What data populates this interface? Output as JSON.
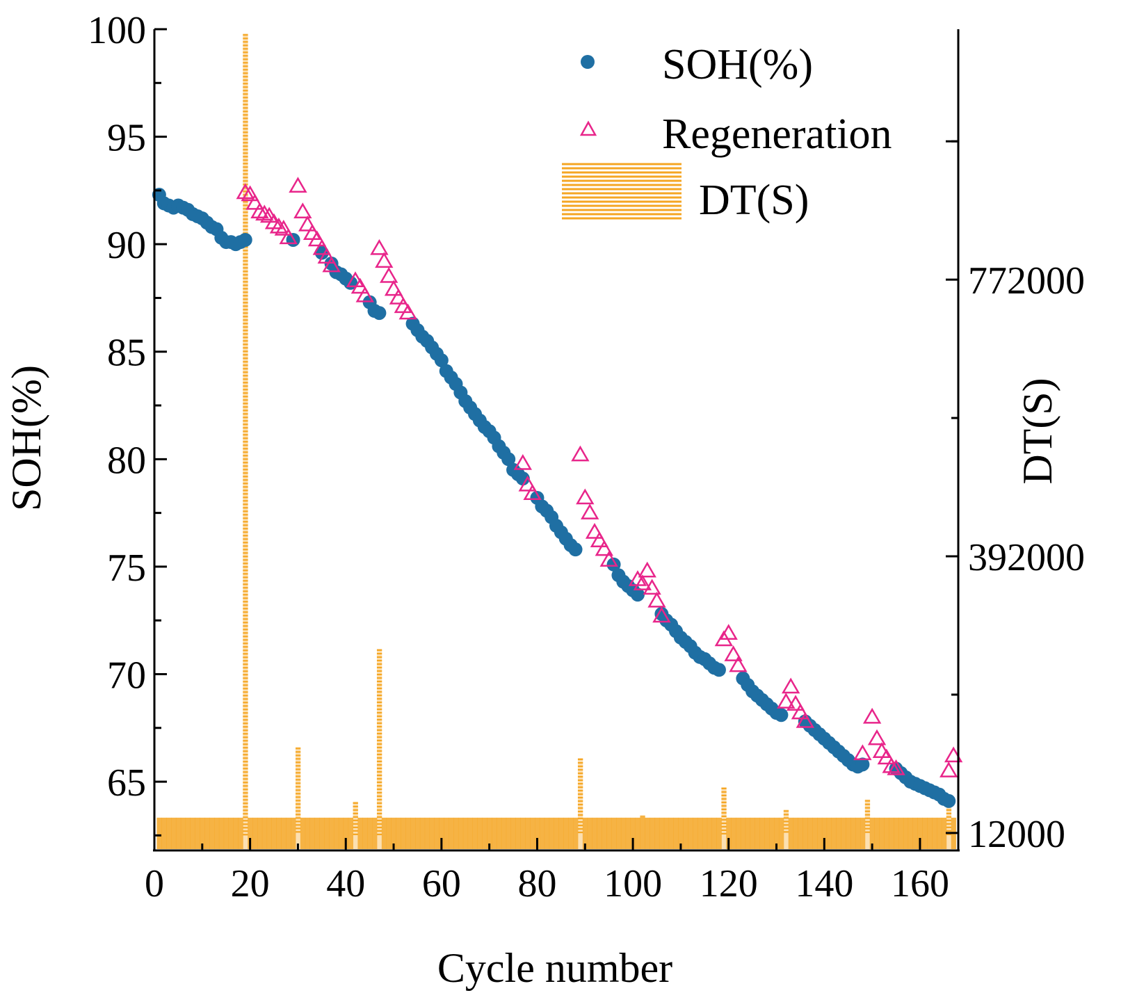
{
  "chart_data": {
    "type": "scatter",
    "title": "",
    "xlabel": "Cycle number",
    "ylabel": "SOH(%)",
    "y2label": "DT(S)",
    "xlim": [
      0,
      168
    ],
    "ylim": [
      61.8,
      100
    ],
    "y2lim": [
      -12000,
      1116000
    ],
    "x_ticks": [
      0,
      20,
      40,
      60,
      80,
      100,
      120,
      140,
      160
    ],
    "y_ticks": [
      65,
      70,
      75,
      80,
      85,
      90,
      95,
      100
    ],
    "y2_ticks": [
      12000,
      392000,
      772000
    ],
    "grid": false,
    "legend_position": "top-right",
    "legend": {
      "soh": "SOH(%)",
      "regeneration": "Regeneration",
      "dt": "DT(S)"
    },
    "colors": {
      "soh": "#1f6fa3",
      "regeneration": "#e8258a",
      "dt": "#f5a623"
    },
    "series": [
      {
        "name": "SOH(%)",
        "marker": "circle",
        "points": [
          [
            1,
            92.3
          ],
          [
            2,
            91.9
          ],
          [
            3,
            91.8
          ],
          [
            4,
            91.7
          ],
          [
            5,
            91.8
          ],
          [
            6,
            91.7
          ],
          [
            7,
            91.6
          ],
          [
            8,
            91.4
          ],
          [
            9,
            91.3
          ],
          [
            10,
            91.2
          ],
          [
            11,
            91.0
          ],
          [
            12,
            90.8
          ],
          [
            13,
            90.7
          ],
          [
            14,
            90.3
          ],
          [
            15,
            90.1
          ],
          [
            16,
            90.1
          ],
          [
            17,
            90.0
          ],
          [
            18,
            90.1
          ],
          [
            19,
            90.2
          ],
          [
            29,
            90.2
          ],
          [
            35,
            89.6
          ],
          [
            37,
            89.1
          ],
          [
            38,
            88.7
          ],
          [
            39,
            88.6
          ],
          [
            40,
            88.4
          ],
          [
            41,
            88.2
          ],
          [
            45,
            87.3
          ],
          [
            46,
            86.9
          ],
          [
            47,
            86.8
          ],
          [
            54,
            86.3
          ],
          [
            55,
            86.0
          ],
          [
            56,
            85.7
          ],
          [
            57,
            85.5
          ],
          [
            58,
            85.2
          ],
          [
            59,
            84.9
          ],
          [
            60,
            84.6
          ],
          [
            61,
            84.1
          ],
          [
            62,
            83.8
          ],
          [
            63,
            83.5
          ],
          [
            64,
            83.1
          ],
          [
            65,
            82.7
          ],
          [
            66,
            82.4
          ],
          [
            67,
            82.1
          ],
          [
            68,
            81.8
          ],
          [
            69,
            81.5
          ],
          [
            70,
            81.3
          ],
          [
            71,
            81.0
          ],
          [
            72,
            80.6
          ],
          [
            73,
            80.3
          ],
          [
            74,
            80.0
          ],
          [
            75,
            79.5
          ],
          [
            76,
            79.3
          ],
          [
            77,
            79.1
          ],
          [
            80,
            78.2
          ],
          [
            81,
            77.8
          ],
          [
            82,
            77.6
          ],
          [
            83,
            77.3
          ],
          [
            84,
            76.9
          ],
          [
            85,
            76.6
          ],
          [
            86,
            76.3
          ],
          [
            87,
            76.0
          ],
          [
            88,
            75.8
          ],
          [
            96,
            75.1
          ],
          [
            97,
            74.6
          ],
          [
            98,
            74.3
          ],
          [
            99,
            74.1
          ],
          [
            100,
            73.9
          ],
          [
            101,
            73.7
          ],
          [
            106,
            72.8
          ],
          [
            107,
            72.5
          ],
          [
            108,
            72.3
          ],
          [
            109,
            72.0
          ],
          [
            110,
            71.7
          ],
          [
            111,
            71.5
          ],
          [
            112,
            71.3
          ],
          [
            113,
            71.0
          ],
          [
            114,
            70.8
          ],
          [
            115,
            70.7
          ],
          [
            116,
            70.5
          ],
          [
            117,
            70.3
          ],
          [
            118,
            70.2
          ],
          [
            123,
            69.8
          ],
          [
            124,
            69.5
          ],
          [
            125,
            69.2
          ],
          [
            126,
            69.0
          ],
          [
            127,
            68.8
          ],
          [
            128,
            68.6
          ],
          [
            129,
            68.4
          ],
          [
            130,
            68.2
          ],
          [
            131,
            68.1
          ],
          [
            136,
            67.8
          ],
          [
            137,
            67.6
          ],
          [
            138,
            67.4
          ],
          [
            139,
            67.2
          ],
          [
            140,
            67.0
          ],
          [
            141,
            66.8
          ],
          [
            142,
            66.6
          ],
          [
            143,
            66.4
          ],
          [
            144,
            66.2
          ],
          [
            145,
            66.0
          ],
          [
            146,
            65.8
          ],
          [
            147,
            65.7
          ],
          [
            148,
            65.8
          ],
          [
            155,
            65.6
          ],
          [
            156,
            65.4
          ],
          [
            157,
            65.2
          ],
          [
            158,
            65.0
          ],
          [
            159,
            64.9
          ],
          [
            160,
            64.8
          ],
          [
            161,
            64.7
          ],
          [
            162,
            64.6
          ],
          [
            163,
            64.5
          ],
          [
            164,
            64.4
          ],
          [
            165,
            64.2
          ],
          [
            166,
            64.1
          ]
        ]
      },
      {
        "name": "Regeneration",
        "marker": "triangle",
        "points": [
          [
            19,
            92.4
          ],
          [
            20,
            92.3
          ],
          [
            21,
            91.9
          ],
          [
            22,
            91.5
          ],
          [
            23,
            91.4
          ],
          [
            24,
            91.3
          ],
          [
            25,
            91.0
          ],
          [
            26,
            90.8
          ],
          [
            27,
            90.7
          ],
          [
            28,
            90.3
          ],
          [
            30,
            92.7
          ],
          [
            31,
            91.5
          ],
          [
            32,
            90.9
          ],
          [
            33,
            90.5
          ],
          [
            34,
            90.2
          ],
          [
            35,
            89.8
          ],
          [
            36,
            89.4
          ],
          [
            37,
            89.0
          ],
          [
            42,
            88.3
          ],
          [
            43,
            88.0
          ],
          [
            44,
            87.6
          ],
          [
            47,
            89.8
          ],
          [
            48,
            89.2
          ],
          [
            49,
            88.5
          ],
          [
            50,
            87.9
          ],
          [
            51,
            87.5
          ],
          [
            52,
            87.1
          ],
          [
            53,
            86.8
          ],
          [
            77,
            79.8
          ],
          [
            78,
            78.8
          ],
          [
            79,
            78.4
          ],
          [
            89,
            80.2
          ],
          [
            90,
            78.2
          ],
          [
            91,
            77.5
          ],
          [
            92,
            76.6
          ],
          [
            93,
            76.2
          ],
          [
            94,
            75.8
          ],
          [
            95,
            75.3
          ],
          [
            101,
            74.4
          ],
          [
            102,
            74.2
          ],
          [
            103,
            74.8
          ],
          [
            104,
            74.0
          ],
          [
            105,
            73.4
          ],
          [
            106,
            72.7
          ],
          [
            119,
            71.6
          ],
          [
            120,
            71.9
          ],
          [
            121,
            70.9
          ],
          [
            122,
            70.4
          ],
          [
            132,
            68.7
          ],
          [
            133,
            69.4
          ],
          [
            134,
            68.6
          ],
          [
            135,
            68.2
          ],
          [
            136,
            67.8
          ],
          [
            148,
            66.3
          ],
          [
            150,
            68.0
          ],
          [
            151,
            67.0
          ],
          [
            152,
            66.4
          ],
          [
            153,
            66.1
          ],
          [
            154,
            65.7
          ],
          [
            155,
            65.6
          ],
          [
            166,
            65.5
          ],
          [
            167,
            66.2
          ]
        ]
      },
      {
        "name": "DT(S)",
        "marker": "bar",
        "baseline": 12000,
        "default_value": 10000,
        "points": [
          [
            11,
            28000
          ],
          [
            19,
            1110000
          ],
          [
            20,
            24000
          ],
          [
            21,
            24000
          ],
          [
            22,
            24000
          ],
          [
            23,
            24000
          ],
          [
            24,
            24000
          ],
          [
            25,
            24000
          ],
          [
            26,
            24000
          ],
          [
            27,
            24000
          ],
          [
            28,
            24000
          ],
          [
            29,
            24000
          ],
          [
            30,
            130000
          ],
          [
            31,
            20000
          ],
          [
            32,
            20000
          ],
          [
            42,
            55000
          ],
          [
            43,
            24000
          ],
          [
            47,
            265000
          ],
          [
            48,
            20000
          ],
          [
            63,
            18000
          ],
          [
            64,
            16000
          ],
          [
            77,
            30000
          ],
          [
            89,
            115000
          ],
          [
            90,
            24000
          ],
          [
            102,
            36000
          ],
          [
            103,
            20000
          ],
          [
            119,
            75000
          ],
          [
            120,
            20000
          ],
          [
            132,
            44000
          ],
          [
            133,
            20000
          ],
          [
            149,
            58000
          ],
          [
            150,
            24000
          ],
          [
            166,
            55000
          ],
          [
            167,
            20000
          ]
        ]
      }
    ]
  }
}
